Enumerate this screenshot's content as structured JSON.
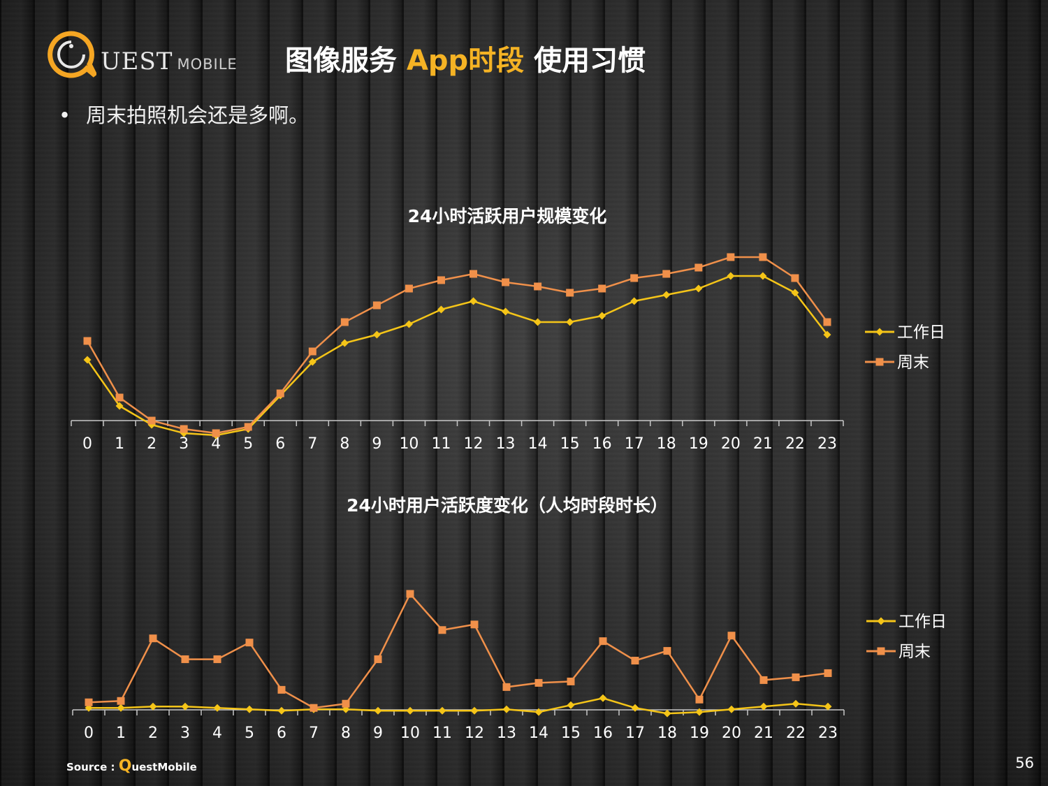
{
  "logo": {
    "main": "UEST",
    "sub": "MOBILE"
  },
  "header": {
    "title_part1": "图像服务 ",
    "title_highlight": "App时段",
    "title_part2": " 使用习惯"
  },
  "bullet": {
    "symbol": "•",
    "text": "周末拍照机会还是多啊。"
  },
  "colors": {
    "workday": "#f5c518",
    "weekend": "#f0904a",
    "highlight": "#f5b324"
  },
  "chart_data": [
    {
      "type": "line",
      "title": "24小时活跃用户规模变化",
      "categories": [
        "0",
        "1",
        "2",
        "3",
        "4",
        "5",
        "6",
        "7",
        "8",
        "9",
        "10",
        "11",
        "12",
        "13",
        "14",
        "15",
        "16",
        "17",
        "18",
        "19",
        "20",
        "21",
        "22",
        "23"
      ],
      "ylim": [
        0,
        100
      ],
      "grid": false,
      "legend": "right",
      "series": [
        {
          "name": "工作日",
          "marker": "diamond",
          "color": "#f5c518",
          "values": [
            43,
            21,
            12,
            8,
            7,
            10,
            26,
            42,
            51,
            55,
            60,
            67,
            71,
            66,
            61,
            61,
            64,
            71,
            74,
            77,
            83,
            83,
            75,
            55
          ]
        },
        {
          "name": "周末",
          "marker": "square",
          "color": "#f0904a",
          "values": [
            52,
            25,
            14,
            10,
            8,
            11,
            27,
            47,
            61,
            69,
            77,
            81,
            84,
            80,
            78,
            75,
            77,
            82,
            84,
            87,
            92,
            92,
            82,
            61
          ]
        }
      ]
    },
    {
      "type": "line",
      "title": "24小时用户活跃度变化（人均时段时长）",
      "categories": [
        "0",
        "1",
        "2",
        "3",
        "4",
        "5",
        "6",
        "7",
        "8",
        "9",
        "10",
        "11",
        "12",
        "13",
        "14",
        "15",
        "16",
        "17",
        "18",
        "19",
        "20",
        "21",
        "22",
        "23"
      ],
      "ylim": [
        0,
        100
      ],
      "grid": false,
      "legend": "right",
      "series": [
        {
          "name": "工作日",
          "marker": "diamond",
          "color": "#f5c518",
          "values": [
            21,
            21,
            22,
            22,
            21,
            20,
            19,
            20,
            20,
            19,
            19,
            19,
            19,
            20,
            18,
            23,
            28,
            21,
            17,
            18,
            20,
            22,
            24,
            22
          ]
        },
        {
          "name": "周末",
          "marker": "square",
          "color": "#f0904a",
          "values": [
            25,
            26,
            71,
            56,
            56,
            68,
            34,
            21,
            24,
            56,
            103,
            77,
            81,
            36,
            39,
            40,
            69,
            55,
            62,
            27,
            73,
            41,
            43,
            46
          ]
        }
      ]
    }
  ],
  "footer": {
    "source_prefix": "Source : ",
    "source_q": "Q",
    "source_rest": "uestMobile",
    "page_number": "56"
  }
}
